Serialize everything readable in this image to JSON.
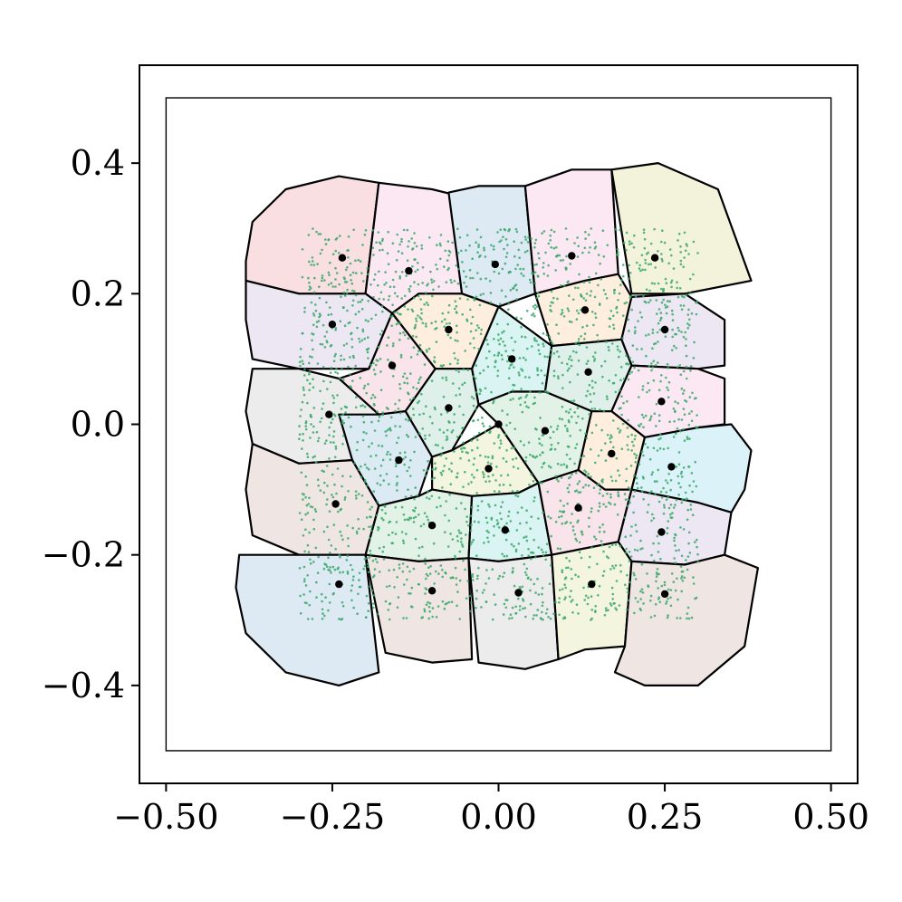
{
  "chart_data": {
    "type": "scatter",
    "title": "",
    "xlabel": "",
    "ylabel": "",
    "xlim": [
      -0.54,
      0.54
    ],
    "ylim": [
      -0.55,
      0.55
    ],
    "grid": false,
    "x_ticks": [
      -0.5,
      -0.25,
      0.0,
      0.25,
      0.5
    ],
    "x_tick_labels": [
      "−0.50",
      "−0.25",
      "0.00",
      "0.25",
      "0.50"
    ],
    "y_ticks": [
      0.4,
      0.2,
      0.0,
      -0.2,
      -0.4
    ],
    "y_tick_labels": [
      "0.4",
      "0.2",
      "0.0",
      "−0.2",
      "−0.4"
    ],
    "inner_box": {
      "x": [
        -0.5,
        0.5
      ],
      "y": [
        -0.5,
        0.5
      ]
    },
    "sample_region": {
      "x": [
        -0.3,
        0.3
      ],
      "y": [
        -0.3,
        0.3
      ],
      "color": "#3aa86b",
      "count": 2600
    },
    "centers": [
      [
        -0.235,
        0.255
      ],
      [
        -0.135,
        0.235
      ],
      [
        -0.005,
        0.245
      ],
      [
        0.11,
        0.258
      ],
      [
        0.235,
        0.255
      ],
      [
        -0.25,
        0.153
      ],
      [
        -0.075,
        0.145
      ],
      [
        0.13,
        0.175
      ],
      [
        0.25,
        0.145
      ],
      [
        -0.16,
        0.09
      ],
      [
        0.02,
        0.1
      ],
      [
        0.135,
        0.08
      ],
      [
        0.245,
        0.035
      ],
      [
        -0.255,
        0.015
      ],
      [
        -0.075,
        0.025
      ],
      [
        0.07,
        -0.01
      ],
      [
        0.0,
        0.0
      ],
      [
        0.17,
        -0.045
      ],
      [
        0.26,
        -0.065
      ],
      [
        -0.15,
        -0.055
      ],
      [
        -0.015,
        -0.068
      ],
      [
        -0.245,
        -0.122
      ],
      [
        -0.1,
        -0.155
      ],
      [
        0.01,
        -0.162
      ],
      [
        0.12,
        -0.128
      ],
      [
        0.245,
        -0.165
      ],
      [
        -0.24,
        -0.245
      ],
      [
        -0.1,
        -0.255
      ],
      [
        0.03,
        -0.258
      ],
      [
        0.14,
        -0.245
      ],
      [
        0.25,
        -0.26
      ]
    ],
    "cells": [
      {
        "color": "#f9dfe1",
        "points": [
          [
            -0.38,
            0.25
          ],
          [
            -0.37,
            0.31
          ],
          [
            -0.32,
            0.36
          ],
          [
            -0.24,
            0.38
          ],
          [
            -0.18,
            0.37
          ],
          [
            -0.2,
            0.2
          ],
          [
            -0.3,
            0.2
          ],
          [
            -0.38,
            0.22
          ]
        ]
      },
      {
        "color": "#fbe8f3",
        "points": [
          [
            -0.18,
            0.37
          ],
          [
            -0.1,
            0.36
          ],
          [
            -0.06,
            0.35
          ],
          [
            -0.055,
            0.2
          ],
          [
            -0.12,
            0.2
          ],
          [
            -0.16,
            0.17
          ],
          [
            -0.2,
            0.2
          ]
        ]
      },
      {
        "color": "#dde9f3",
        "points": [
          [
            -0.075,
            0.355
          ],
          [
            -0.03,
            0.365
          ],
          [
            0.04,
            0.365
          ],
          [
            0.055,
            0.2
          ],
          [
            0.0,
            0.18
          ],
          [
            -0.055,
            0.2
          ]
        ]
      },
      {
        "color": "#fbe8f3",
        "points": [
          [
            0.04,
            0.365
          ],
          [
            0.11,
            0.39
          ],
          [
            0.17,
            0.39
          ],
          [
            0.18,
            0.23
          ],
          [
            0.13,
            0.22
          ],
          [
            0.055,
            0.2
          ]
        ]
      },
      {
        "color": "#f3f3dc",
        "points": [
          [
            0.17,
            0.39
          ],
          [
            0.24,
            0.4
          ],
          [
            0.33,
            0.36
          ],
          [
            0.38,
            0.22
          ],
          [
            0.28,
            0.2
          ],
          [
            0.2,
            0.2
          ]
        ]
      },
      {
        "color": "#ede7f4",
        "points": [
          [
            -0.38,
            0.22
          ],
          [
            -0.3,
            0.2
          ],
          [
            -0.2,
            0.2
          ],
          [
            -0.16,
            0.17
          ],
          [
            -0.195,
            0.085
          ],
          [
            -0.3,
            0.085
          ],
          [
            -0.37,
            0.1
          ],
          [
            -0.38,
            0.16
          ]
        ]
      },
      {
        "color": "#fdeede",
        "points": [
          [
            -0.12,
            0.2
          ],
          [
            -0.055,
            0.2
          ],
          [
            0.0,
            0.18
          ],
          [
            -0.04,
            0.085
          ],
          [
            -0.095,
            0.085
          ],
          [
            -0.16,
            0.17
          ]
        ]
      },
      {
        "color": "#fdeede",
        "points": [
          [
            0.055,
            0.2
          ],
          [
            0.13,
            0.22
          ],
          [
            0.18,
            0.23
          ],
          [
            0.2,
            0.195
          ],
          [
            0.185,
            0.13
          ],
          [
            0.08,
            0.12
          ]
        ]
      },
      {
        "color": "#ede7f4",
        "points": [
          [
            0.2,
            0.195
          ],
          [
            0.28,
            0.2
          ],
          [
            0.34,
            0.16
          ],
          [
            0.34,
            0.09
          ],
          [
            0.3,
            0.085
          ],
          [
            0.2,
            0.09
          ],
          [
            0.185,
            0.13
          ]
        ]
      },
      {
        "color": "#f8e4ea",
        "points": [
          [
            -0.195,
            0.085
          ],
          [
            -0.16,
            0.17
          ],
          [
            -0.095,
            0.085
          ],
          [
            -0.14,
            0.02
          ],
          [
            -0.18,
            0.015
          ],
          [
            -0.24,
            0.07
          ]
        ]
      },
      {
        "color": "#d9f4f2",
        "points": [
          [
            -0.04,
            0.085
          ],
          [
            0.0,
            0.18
          ],
          [
            0.08,
            0.12
          ],
          [
            0.07,
            0.05
          ],
          [
            0.02,
            0.05
          ],
          [
            -0.03,
            0.03
          ]
        ]
      },
      {
        "color": "#dff0ea",
        "points": [
          [
            0.08,
            0.12
          ],
          [
            0.185,
            0.13
          ],
          [
            0.2,
            0.09
          ],
          [
            0.17,
            0.02
          ],
          [
            0.14,
            0.02
          ],
          [
            0.07,
            0.05
          ]
        ]
      },
      {
        "color": "#fbe8f3",
        "points": [
          [
            0.2,
            0.09
          ],
          [
            0.3,
            0.085
          ],
          [
            0.34,
            0.07
          ],
          [
            0.34,
            0.0
          ],
          [
            0.3,
            -0.005
          ],
          [
            0.22,
            -0.02
          ],
          [
            0.17,
            0.02
          ]
        ]
      },
      {
        "color": "#ececec",
        "points": [
          [
            -0.37,
            0.085
          ],
          [
            -0.3,
            0.085
          ],
          [
            -0.24,
            0.07
          ],
          [
            -0.18,
            0.015
          ],
          [
            -0.22,
            -0.055
          ],
          [
            -0.3,
            -0.06
          ],
          [
            -0.37,
            -0.03
          ],
          [
            -0.38,
            0.02
          ]
        ]
      },
      {
        "color": "#dff0ea",
        "points": [
          [
            -0.095,
            0.085
          ],
          [
            -0.04,
            0.085
          ],
          [
            -0.03,
            0.03
          ],
          [
            -0.07,
            -0.04
          ],
          [
            -0.1,
            -0.05
          ],
          [
            -0.14,
            0.02
          ]
        ]
      },
      {
        "color": "#e2f2e6",
        "points": [
          [
            -0.03,
            0.03
          ],
          [
            0.02,
            0.05
          ],
          [
            0.07,
            0.05
          ],
          [
            0.14,
            0.02
          ],
          [
            0.12,
            -0.07
          ],
          [
            0.06,
            -0.09
          ],
          [
            0.0,
            0.0
          ]
        ]
      },
      {
        "color": "#fdeede",
        "points": [
          [
            0.14,
            0.02
          ],
          [
            0.17,
            0.02
          ],
          [
            0.22,
            -0.02
          ],
          [
            0.2,
            -0.1
          ],
          [
            0.16,
            -0.1
          ],
          [
            0.12,
            -0.07
          ]
        ]
      },
      {
        "color": "#dbf3f8",
        "points": [
          [
            0.22,
            -0.02
          ],
          [
            0.3,
            -0.005
          ],
          [
            0.35,
            0.0
          ],
          [
            0.38,
            -0.04
          ],
          [
            0.37,
            -0.1
          ],
          [
            0.35,
            -0.135
          ],
          [
            0.3,
            -0.12
          ],
          [
            0.2,
            -0.1
          ]
        ]
      },
      {
        "color": "#dcebf3",
        "points": [
          [
            -0.24,
            0.015
          ],
          [
            -0.18,
            0.015
          ],
          [
            -0.14,
            0.02
          ],
          [
            -0.1,
            -0.05
          ],
          [
            -0.12,
            -0.11
          ],
          [
            -0.18,
            -0.125
          ],
          [
            -0.22,
            -0.055
          ]
        ]
      },
      {
        "color": "#f3f5df",
        "points": [
          [
            -0.07,
            -0.04
          ],
          [
            0.0,
            0.0
          ],
          [
            0.06,
            -0.09
          ],
          [
            0.03,
            -0.105
          ],
          [
            -0.04,
            -0.11
          ],
          [
            -0.1,
            -0.1
          ],
          [
            -0.1,
            -0.05
          ]
        ]
      },
      {
        "color": "#efe6e4",
        "points": [
          [
            -0.37,
            -0.03
          ],
          [
            -0.3,
            -0.06
          ],
          [
            -0.22,
            -0.055
          ],
          [
            -0.18,
            -0.125
          ],
          [
            -0.2,
            -0.2
          ],
          [
            -0.3,
            -0.2
          ],
          [
            -0.37,
            -0.17
          ],
          [
            -0.38,
            -0.1
          ]
        ]
      },
      {
        "color": "#e2f2e6",
        "points": [
          [
            -0.18,
            -0.125
          ],
          [
            -0.12,
            -0.11
          ],
          [
            -0.1,
            -0.1
          ],
          [
            -0.04,
            -0.11
          ],
          [
            -0.045,
            -0.205
          ],
          [
            -0.12,
            -0.21
          ],
          [
            -0.2,
            -0.2
          ]
        ]
      },
      {
        "color": "#d9f4f2",
        "points": [
          [
            -0.04,
            -0.11
          ],
          [
            0.03,
            -0.105
          ],
          [
            0.06,
            -0.09
          ],
          [
            0.08,
            -0.2
          ],
          [
            0.0,
            -0.21
          ],
          [
            -0.045,
            -0.205
          ]
        ]
      },
      {
        "color": "#f8e4ea",
        "points": [
          [
            0.06,
            -0.09
          ],
          [
            0.12,
            -0.07
          ],
          [
            0.16,
            -0.1
          ],
          [
            0.2,
            -0.1
          ],
          [
            0.18,
            -0.18
          ],
          [
            0.08,
            -0.2
          ]
        ]
      },
      {
        "color": "#ede7f4",
        "points": [
          [
            0.2,
            -0.1
          ],
          [
            0.3,
            -0.12
          ],
          [
            0.35,
            -0.135
          ],
          [
            0.34,
            -0.2
          ],
          [
            0.28,
            -0.215
          ],
          [
            0.2,
            -0.21
          ],
          [
            0.18,
            -0.18
          ]
        ]
      },
      {
        "color": "#dde9f3",
        "points": [
          [
            -0.39,
            -0.2
          ],
          [
            -0.3,
            -0.2
          ],
          [
            -0.2,
            -0.2
          ],
          [
            -0.18,
            -0.38
          ],
          [
            -0.24,
            -0.4
          ],
          [
            -0.32,
            -0.38
          ],
          [
            -0.38,
            -0.32
          ],
          [
            -0.395,
            -0.25
          ]
        ]
      },
      {
        "color": "#efe6e4",
        "points": [
          [
            -0.2,
            -0.2
          ],
          [
            -0.12,
            -0.21
          ],
          [
            -0.045,
            -0.205
          ],
          [
            -0.04,
            -0.36
          ],
          [
            -0.1,
            -0.365
          ],
          [
            -0.17,
            -0.35
          ]
        ]
      },
      {
        "color": "#ececec",
        "points": [
          [
            -0.045,
            -0.205
          ],
          [
            0.0,
            -0.21
          ],
          [
            0.08,
            -0.2
          ],
          [
            0.09,
            -0.36
          ],
          [
            0.04,
            -0.375
          ],
          [
            -0.03,
            -0.365
          ]
        ]
      },
      {
        "color": "#f3f5df",
        "points": [
          [
            0.08,
            -0.2
          ],
          [
            0.18,
            -0.18
          ],
          [
            0.2,
            -0.21
          ],
          [
            0.19,
            -0.34
          ],
          [
            0.13,
            -0.345
          ],
          [
            0.09,
            -0.36
          ]
        ]
      },
      {
        "color": "#efe6e4",
        "points": [
          [
            0.2,
            -0.21
          ],
          [
            0.28,
            -0.215
          ],
          [
            0.34,
            -0.2
          ],
          [
            0.39,
            -0.22
          ],
          [
            0.37,
            -0.34
          ],
          [
            0.3,
            -0.4
          ],
          [
            0.22,
            -0.4
          ],
          [
            0.175,
            -0.38
          ],
          [
            0.19,
            -0.34
          ]
        ]
      }
    ]
  }
}
